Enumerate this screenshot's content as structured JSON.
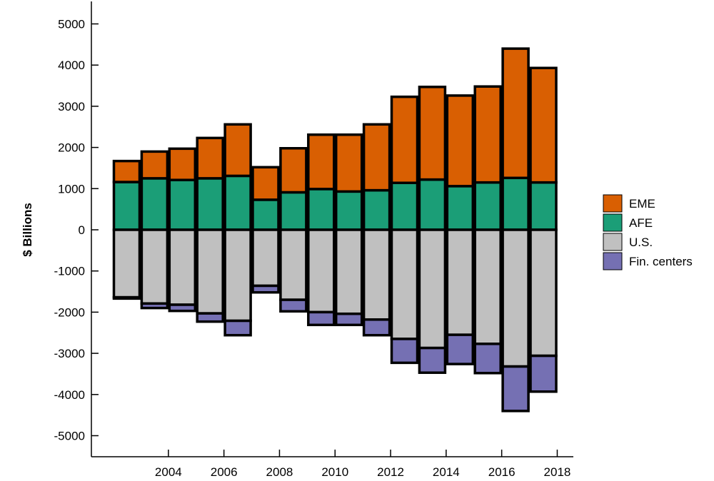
{
  "chart_data": {
    "type": "bar",
    "stacked": true,
    "title": "",
    "xlabel": "",
    "ylabel": "$ Billions",
    "ylim": [
      -5500,
      5500
    ],
    "yticks": [
      5000,
      4000,
      3000,
      2000,
      1000,
      0,
      -1000,
      -2000,
      -3000,
      -4000,
      -5000
    ],
    "ytick_labels": [
      "5000",
      "4000",
      "3000",
      "2000",
      "1000",
      "0",
      "-1000",
      "-2000",
      "-3000",
      "-4000",
      "-5000"
    ],
    "xtick_years": [
      2004,
      2006,
      2008,
      2010,
      2012,
      2014,
      2016,
      2018
    ],
    "xtick_labels": [
      "2004",
      "2006",
      "2008",
      "2010",
      "2012",
      "2014",
      "2016",
      "2018"
    ],
    "categories": [
      "2003",
      "2004",
      "2005",
      "2006",
      "2007",
      "2008",
      "2009",
      "2010",
      "2011",
      "2012",
      "2013",
      "2014",
      "2015",
      "2016",
      "2017",
      "2018"
    ],
    "grid": false,
    "legend_position": "right",
    "series": [
      {
        "name": "EME",
        "color": "#d95f02",
        "values": [
          510,
          650,
          760,
          980,
          1250,
          790,
          1070,
          1320,
          1380,
          1600,
          2090,
          2250,
          2200,
          2330,
          3140,
          2780
        ]
      },
      {
        "name": "AFE",
        "color": "#1b9e77",
        "values": [
          1160,
          1250,
          1210,
          1250,
          1310,
          730,
          910,
          990,
          930,
          960,
          1140,
          1220,
          1060,
          1150,
          1260,
          1150
        ]
      },
      {
        "name": "U.S.",
        "color": "#c0c0c0",
        "values": [
          -1640,
          -1790,
          -1820,
          -2030,
          -2210,
          -1360,
          -1700,
          -2000,
          -2040,
          -2180,
          -2650,
          -2870,
          -2550,
          -2770,
          -3320,
          -3060
        ]
      },
      {
        "name": "Fin. centers",
        "color": "#7570b3",
        "values": [
          -30,
          -110,
          -150,
          -200,
          -350,
          -160,
          -280,
          -310,
          -270,
          -380,
          -580,
          -600,
          -710,
          -710,
          -1080,
          -870
        ]
      }
    ]
  }
}
